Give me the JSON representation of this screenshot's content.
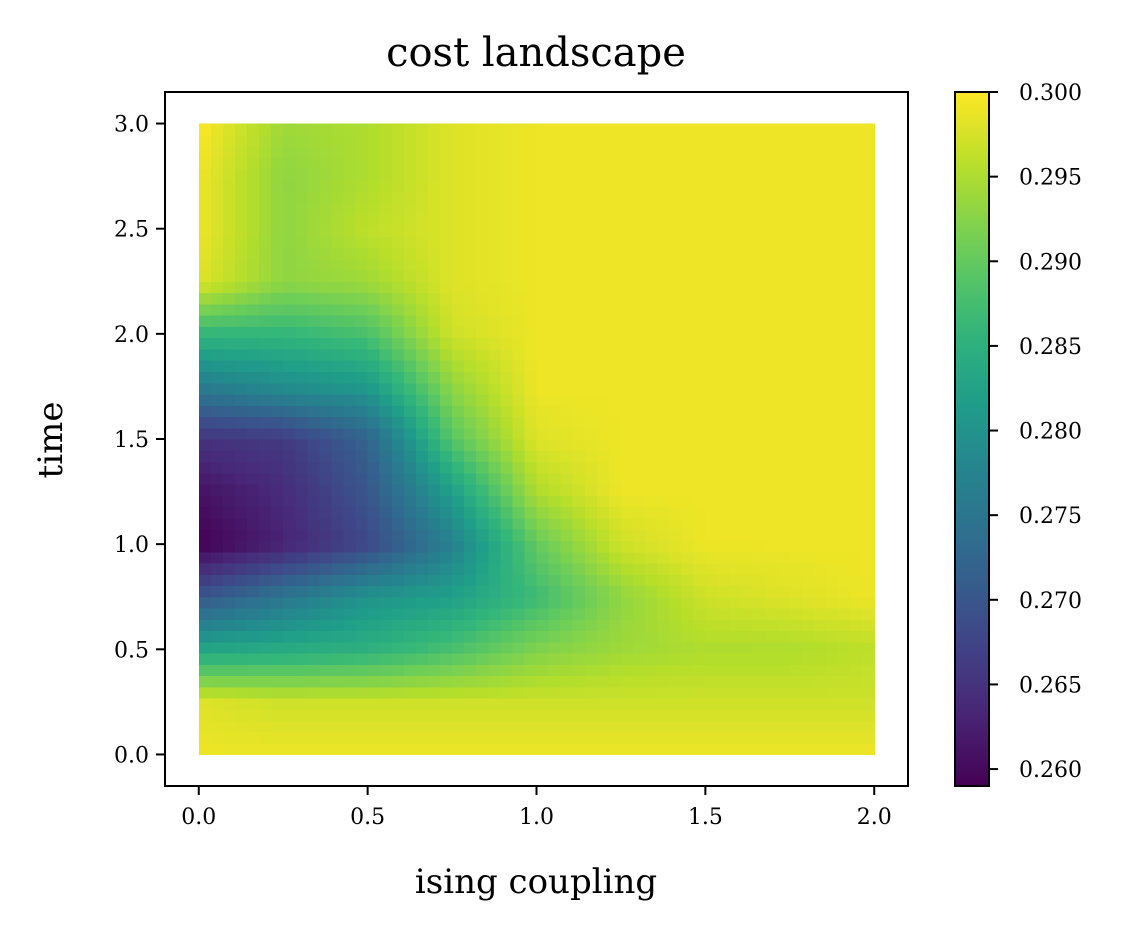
{
  "chart_data": {
    "type": "heatmap",
    "title": "cost landscape",
    "xlabel": "ising coupling",
    "ylabel": "time",
    "xlim": [
      -0.1,
      2.1
    ],
    "ylim": [
      -0.15,
      3.15
    ],
    "data_extent": {
      "x": [
        0.0,
        2.0
      ],
      "y": [
        0.0,
        3.0
      ]
    },
    "xticks": [
      0.0,
      0.5,
      1.0,
      1.5,
      2.0
    ],
    "xtick_labels": [
      "0.0",
      "0.5",
      "1.0",
      "1.5",
      "2.0"
    ],
    "yticks": [
      0.0,
      0.5,
      1.0,
      1.5,
      2.0,
      2.5,
      3.0
    ],
    "ytick_labels": [
      "0.0",
      "0.5",
      "1.0",
      "1.5",
      "2.0",
      "2.5",
      "3.0"
    ],
    "colormap": "viridis",
    "colorbar": {
      "vmin": 0.259,
      "vmax": 0.3,
      "ticks": [
        0.26,
        0.265,
        0.27,
        0.275,
        0.28,
        0.285,
        0.29,
        0.295,
        0.3
      ],
      "tick_labels": [
        "0.260",
        "0.265",
        "0.270",
        "0.275",
        "0.280",
        "0.285",
        "0.290",
        "0.295",
        "0.300"
      ]
    },
    "grid": false,
    "x_samples": [
      0.0,
      0.25,
      0.5,
      0.75,
      1.0,
      1.25,
      1.5,
      1.75,
      2.0
    ],
    "y_samples": [
      0.0,
      0.25,
      0.5,
      0.75,
      1.0,
      1.25,
      1.5,
      1.75,
      2.0,
      2.25,
      2.5,
      2.75,
      3.0
    ],
    "values": [
      [
        0.299,
        0.299,
        0.299,
        0.299,
        0.299,
        0.299,
        0.299,
        0.299,
        0.299
      ],
      [
        0.298,
        0.297,
        0.297,
        0.297,
        0.297,
        0.297,
        0.297,
        0.297,
        0.297
      ],
      [
        0.283,
        0.284,
        0.285,
        0.288,
        0.292,
        0.294,
        0.295,
        0.295,
        0.296
      ],
      [
        0.27,
        0.275,
        0.28,
        0.282,
        0.287,
        0.293,
        0.297,
        0.298,
        0.299
      ],
      [
        0.259,
        0.263,
        0.268,
        0.277,
        0.29,
        0.297,
        0.299,
        0.299,
        0.299
      ],
      [
        0.261,
        0.264,
        0.27,
        0.282,
        0.295,
        0.299,
        0.299,
        0.299,
        0.299
      ],
      [
        0.265,
        0.266,
        0.272,
        0.289,
        0.298,
        0.299,
        0.299,
        0.299,
        0.299
      ],
      [
        0.276,
        0.279,
        0.281,
        0.293,
        0.299,
        0.299,
        0.299,
        0.299,
        0.299
      ],
      [
        0.286,
        0.286,
        0.288,
        0.297,
        0.299,
        0.299,
        0.299,
        0.299,
        0.299
      ],
      [
        0.298,
        0.293,
        0.294,
        0.298,
        0.299,
        0.299,
        0.299,
        0.299,
        0.299
      ],
      [
        0.299,
        0.293,
        0.296,
        0.298,
        0.299,
        0.299,
        0.299,
        0.299,
        0.299
      ],
      [
        0.299,
        0.293,
        0.295,
        0.298,
        0.299,
        0.299,
        0.299,
        0.299,
        0.299
      ],
      [
        0.3,
        0.294,
        0.295,
        0.298,
        0.299,
        0.299,
        0.299,
        0.299,
        0.299
      ]
    ]
  }
}
